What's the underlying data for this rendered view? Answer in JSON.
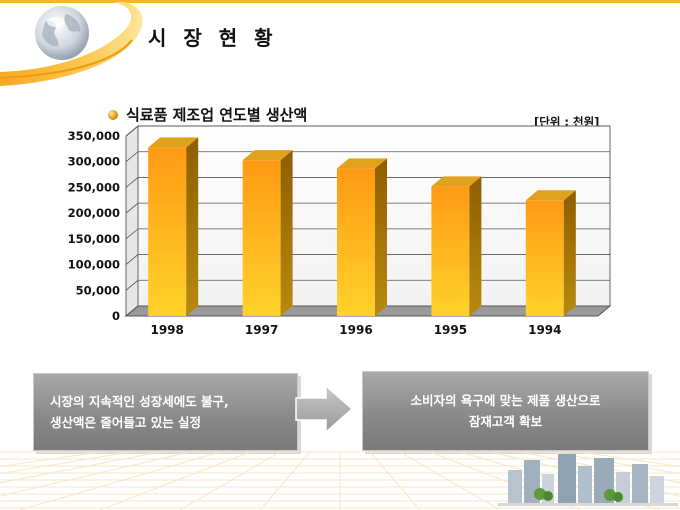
{
  "slide": {
    "title": "시 장 현 황",
    "chart_title": "식료품 제조업 연도별 생산액",
    "unit": "[단위 : 천원]"
  },
  "callouts": {
    "left": [
      "시장의 지속적인 성장세에도 불구,",
      "생산액은 줄어들고 있는 실정"
    ],
    "right": [
      "소비자의 욕구에 맞는 제품 생산으로",
      "잠재고객 확보"
    ]
  },
  "colors": {
    "accent": "#f5b528",
    "bar_front_top": "#ff9a14",
    "bar_front_bottom": "#ffd22a",
    "bar_side": "#9a6a06",
    "bar_top": "#e0a21c",
    "callout_bg": "#8a8a8a"
  },
  "chart_data": {
    "type": "bar",
    "categories": [
      "1998",
      "1997",
      "1996",
      "1995",
      "1994"
    ],
    "values": [
      328000,
      303000,
      287000,
      252000,
      225000
    ],
    "yticks": [
      "0",
      "50,000",
      "100,000",
      "150,000",
      "200,000",
      "250,000",
      "300,000",
      "350,000"
    ],
    "ylim": [
      0,
      350000
    ],
    "grid": true,
    "legend": "none",
    "title": "식료품 제조업 연도별 생산액",
    "unit_label": "[단위 : 천원]"
  }
}
